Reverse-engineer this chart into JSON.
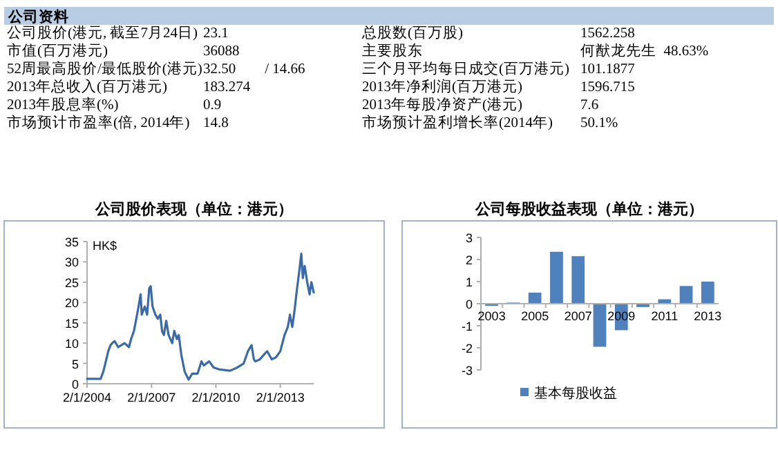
{
  "chart_data": [
    {
      "type": "other",
      "title": "公司资料",
      "annotations": [
        "公司股价(港元, 截至7月24日)",
        "23.1",
        "总股数(百万股)",
        "1562.258",
        "市值(百万港元)",
        "36088",
        "主要股东",
        "何猷龙先生  48.63%",
        "52周最高股价/最低股价(港元)",
        "32.50        / 14.66",
        "三个月平均每日成交(百万港元)",
        "101.1877",
        "2013年总收入(百万港元)",
        "183.274",
        "2013年净利润(百万港元)",
        "1596.715",
        "2013年股息率(%)",
        "0.9",
        "2013年每股净资产(港元)",
        "7.6",
        "市场预计市盈率(倍, 2014年)",
        "14.8",
        "市场预计盈利增长率(2014年)",
        "50.1%"
      ]
    },
    {
      "type": "line",
      "title": "公司股价表现（单位：港元）",
      "ylabel": "HK$",
      "xlim": [
        "2004-01-02",
        "2014-07-24"
      ],
      "ylim": [
        0,
        35
      ],
      "xticks": [
        {
          "value": "2004-01-02",
          "label": "2/1/2004"
        },
        {
          "value": "2007-01-02",
          "label": "2/1/2007"
        },
        {
          "value": "2010-01-02",
          "label": "2/1/2010"
        },
        {
          "value": "2013-01-02",
          "label": "2/1/2013"
        }
      ],
      "yticks": [
        0,
        5,
        10,
        15,
        20,
        25,
        30,
        35
      ],
      "x": [
        "2004-01-02",
        "2004-08-20",
        "2004-10-05",
        "2004-12-28",
        "2005-02-05",
        "2005-03-05",
        "2005-04-15",
        "2005-06-15",
        "2005-10-01",
        "2005-12-15",
        "2006-01-20",
        "2006-03-10",
        "2006-05-15",
        "2006-07-01",
        "2006-07-20",
        "2006-09-10",
        "2006-10-20",
        "2006-11-25",
        "2006-12-20",
        "2007-01-20",
        "2007-03-10",
        "2007-04-20",
        "2007-06-01",
        "2007-07-01",
        "2007-08-01",
        "2007-09-10",
        "2007-10-20",
        "2007-12-20",
        "2008-01-25",
        "2008-03-10",
        "2008-04-10",
        "2008-05-25",
        "2008-07-20",
        "2008-09-25",
        "2008-11-25",
        "2009-02-25",
        "2009-05-01",
        "2009-06-10",
        "2009-09-10",
        "2009-11-25",
        "2010-03-10",
        "2010-09-01",
        "2011-01-02",
        "2011-04-20",
        "2011-07-01",
        "2011-09-01",
        "2011-10-10",
        "2011-11-05",
        "2012-01-20",
        "2012-04-20",
        "2012-05-25",
        "2012-08-10",
        "2012-10-20",
        "2013-01-02",
        "2013-03-15",
        "2013-05-10",
        "2013-06-15",
        "2013-07-25",
        "2013-09-01",
        "2013-10-10",
        "2013-11-15",
        "2013-12-25",
        "2014-01-20",
        "2014-02-20",
        "2014-04-05",
        "2014-05-15",
        "2014-06-15",
        "2014-07-24"
      ],
      "series": [
        {
          "color": "#3a6ba8",
          "values": [
            1.2,
            1.2,
            3,
            8,
            9.5,
            10,
            10.5,
            9,
            10,
            9,
            11,
            13,
            18,
            22,
            17,
            19,
            17,
            23.5,
            24,
            19,
            17,
            16,
            17,
            13,
            12,
            15.5,
            12,
            10,
            13,
            11,
            12,
            7,
            3,
            1,
            2.5,
            2.5,
            5.5,
            4.5,
            5.5,
            4,
            3.5,
            3.2,
            4,
            5,
            8,
            9.5,
            6,
            5.5,
            6,
            7.5,
            8,
            6,
            6.5,
            8,
            12,
            14,
            17,
            14,
            18,
            23,
            27,
            32,
            26,
            29,
            25,
            22,
            25,
            22.5
          ]
        }
      ]
    },
    {
      "type": "bar",
      "title": "公司每股收益表现（单位：港元）",
      "legend": "bottom",
      "categories": [
        "2003",
        null,
        "2005",
        null,
        "2007",
        null,
        "2009",
        null,
        "2011",
        null,
        "2013"
      ],
      "ylim": [
        -3,
        3
      ],
      "yticks": [
        -3,
        -2,
        -1,
        0,
        1,
        2,
        3
      ],
      "series": [
        {
          "name": "基本每股收益",
          "color": "#4f81bd",
          "values": [
            -0.1,
            0.05,
            0.5,
            2.35,
            2.15,
            -1.95,
            -1.2,
            -0.15,
            0.2,
            0.8,
            1.0
          ]
        }
      ]
    }
  ]
}
